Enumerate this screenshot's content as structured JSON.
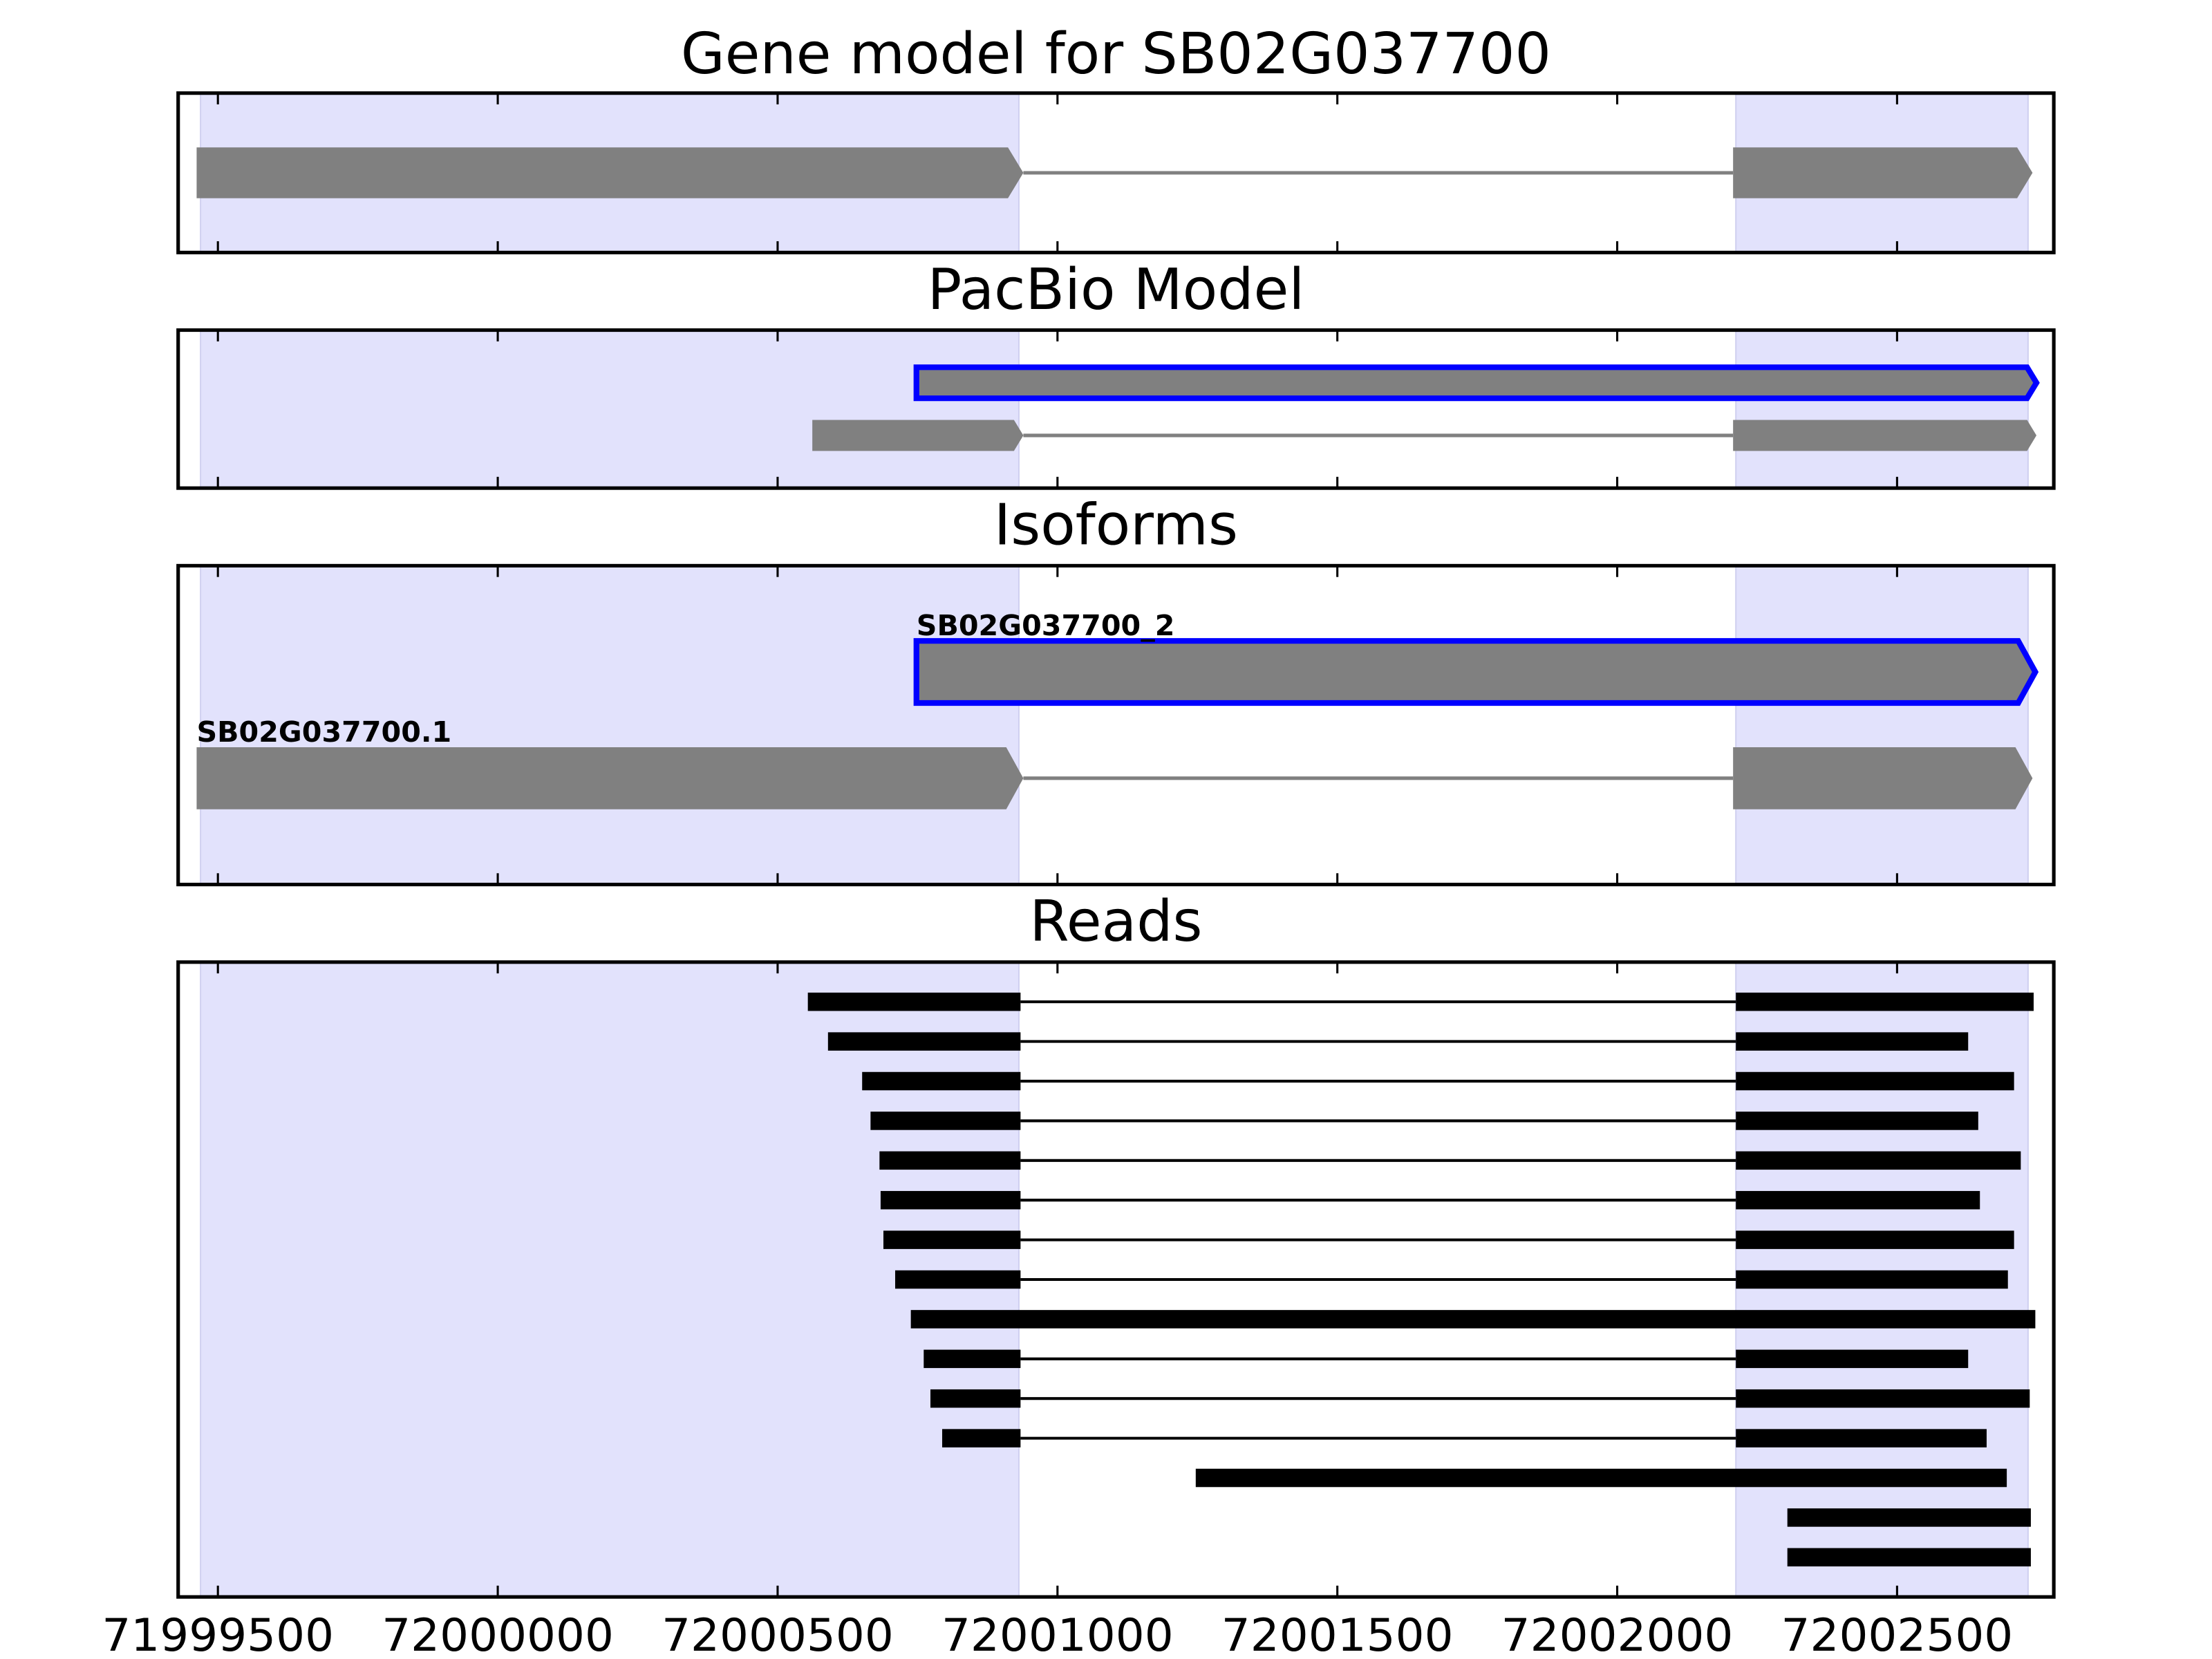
{
  "chart_data": [
    {
      "type": "gene-track",
      "title": "Gene model for SB02G037700",
      "xlim": [
        71999429,
        72002780
      ],
      "xticks": [
        71999500,
        72000000,
        72000500,
        72001000,
        72001500,
        72002000,
        72002500
      ],
      "highlights": [
        [
          71999469,
          72000931
        ],
        [
          72002212,
          72002734
        ]
      ],
      "color": "#808080",
      "arrows": true,
      "transcripts": [
        {
          "exons": [
            [
              71999462,
              72000939
            ],
            [
              72002207,
              72002742
            ]
          ]
        }
      ]
    },
    {
      "type": "gene-track",
      "title": "PacBio Model",
      "xlim": [
        71999429,
        72002780
      ],
      "xticks": [
        71999500,
        72000000,
        72000500,
        72001000,
        72001500,
        72002000,
        72002500
      ],
      "highlights": [
        [
          71999469,
          72000931
        ],
        [
          72002212,
          72002734
        ]
      ],
      "color": "#808080",
      "arrows": true,
      "transcripts": [
        {
          "exons": [
            [
              72000748,
              72002749
            ]
          ],
          "edgecolor": "#0000ff"
        },
        {
          "exons": [
            [
              72000562,
              72000939
            ],
            [
              72002207,
              72002749
            ]
          ]
        }
      ]
    },
    {
      "type": "gene-track",
      "title": "Isoforms",
      "xlim": [
        71999429,
        72002780
      ],
      "xticks": [
        71999500,
        72000000,
        72000500,
        72001000,
        72001500,
        72002000,
        72002500
      ],
      "highlights": [
        [
          71999469,
          72000931
        ],
        [
          72002212,
          72002734
        ]
      ],
      "color": "#808080",
      "arrows": true,
      "transcripts": [
        {
          "label": "SB02G037700_2",
          "exons": [
            [
              72000748,
              72002747
            ]
          ],
          "edgecolor": "#0000ff"
        },
        {
          "label": "SB02G037700.1",
          "exons": [
            [
              71999462,
              72000939
            ],
            [
              72002207,
              72002742
            ]
          ]
        }
      ]
    },
    {
      "type": "gene-track",
      "title": "Reads",
      "xlim": [
        71999429,
        72002780
      ],
      "xticks": [
        71999500,
        72000000,
        72000500,
        72001000,
        72001500,
        72002000,
        72002500
      ],
      "highlights": [
        [
          71999469,
          72000931
        ],
        [
          72002212,
          72002734
        ]
      ],
      "color": "#000000",
      "arrows": false,
      "transcripts": [
        {
          "exons": [
            [
              72000554,
              72000934
            ],
            [
              72002212,
              72002744
            ]
          ]
        },
        {
          "exons": [
            [
              72000590,
              72000934
            ],
            [
              72002212,
              72002627
            ]
          ]
        },
        {
          "exons": [
            [
              72000651,
              72000934
            ],
            [
              72002212,
              72002709
            ]
          ]
        },
        {
          "exons": [
            [
              72000666,
              72000934
            ],
            [
              72002212,
              72002645
            ]
          ]
        },
        {
          "exons": [
            [
              72000682,
              72000934
            ],
            [
              72002212,
              72002721
            ]
          ]
        },
        {
          "exons": [
            [
              72000684,
              72000934
            ],
            [
              72002212,
              72002648
            ]
          ]
        },
        {
          "exons": [
            [
              72000689,
              72000934
            ],
            [
              72002212,
              72002709
            ]
          ]
        },
        {
          "exons": [
            [
              72000710,
              72000934
            ],
            [
              72002212,
              72002698
            ]
          ]
        },
        {
          "exons": [
            [
              72000738,
              72002747
            ]
          ]
        },
        {
          "exons": [
            [
              72000761,
              72000934
            ],
            [
              72002212,
              72002627
            ]
          ]
        },
        {
          "exons": [
            [
              72000773,
              72000934
            ],
            [
              72002212,
              72002737
            ]
          ]
        },
        {
          "exons": [
            [
              72000794,
              72000934
            ],
            [
              72002212,
              72002660
            ]
          ]
        },
        {
          "exons": [
            [
              72001247,
              72002696
            ]
          ]
        },
        {
          "exons": [
            [
              72002304,
              72002739
            ]
          ]
        },
        {
          "exons": [
            [
              72002304,
              72002739
            ]
          ]
        }
      ]
    }
  ]
}
